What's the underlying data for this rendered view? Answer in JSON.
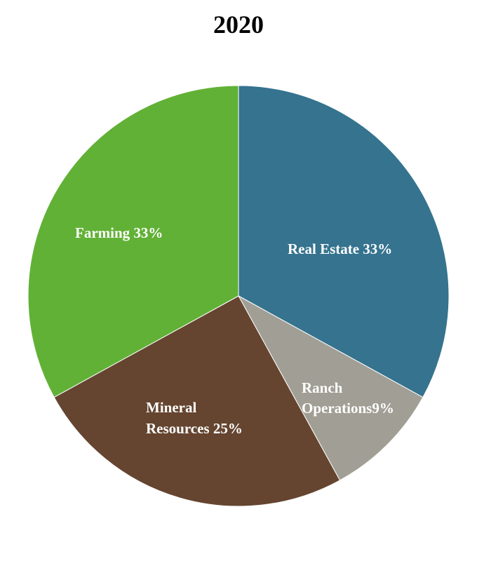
{
  "chart_data": {
    "type": "pie",
    "title": "2020",
    "slices": [
      {
        "name": "Real Estate",
        "value": 33,
        "color": "#35738f",
        "label_lines": [
          "Real Estate 33%"
        ]
      },
      {
        "name": "Ranch Operations",
        "value": 9,
        "color": "#a19f95",
        "label_lines": [
          "Ranch",
          "Operations9%"
        ]
      },
      {
        "name": "Mineral Resources",
        "value": 25,
        "color": "#654530",
        "label_lines": [
          "Mineral",
          "Resources 25%"
        ]
      },
      {
        "name": "Farming",
        "value": 33,
        "color": "#61b136",
        "label_lines": [
          "Farming 33%"
        ]
      }
    ],
    "start_angle": "12 o'clock",
    "direction": "clockwise",
    "legend": "none"
  }
}
